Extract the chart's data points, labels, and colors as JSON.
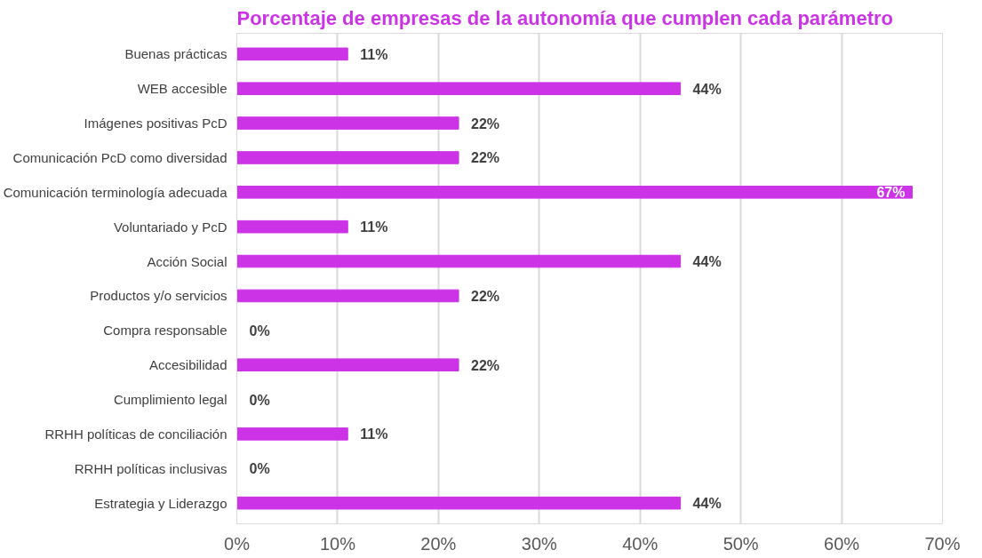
{
  "chart_data": {
    "type": "bar",
    "orientation": "horizontal",
    "title": "Porcentaje de empresas de la autonomía que cumplen cada parámetro",
    "categories": [
      "Buenas prácticas",
      "WEB accesible",
      "Imágenes positivas PcD",
      "Comunicación PcD como diversidad",
      "Comunicación terminología adecuada",
      "Voluntariado y PcD",
      "Acción Social",
      "Productos y/o servicios",
      "Compra responsable",
      "Accesibilidad",
      "Cumplimiento legal",
      "RRHH políticas de conciliación",
      "RRHH políticas inclusivas",
      "Estrategia y Liderazgo"
    ],
    "values": [
      11,
      44,
      22,
      22,
      67,
      11,
      44,
      22,
      0,
      22,
      0,
      11,
      0,
      44
    ],
    "value_labels": [
      "11%",
      "44%",
      "22%",
      "22%",
      "67%",
      "11%",
      "44%",
      "22%",
      "0%",
      "22%",
      "0%",
      "11%",
      "0%",
      "44%"
    ],
    "color": "#cc33e6",
    "xlim": [
      0,
      70
    ],
    "xticks": [
      {
        "value": 0,
        "label": "0%"
      },
      {
        "value": 10,
        "label": "10%"
      },
      {
        "value": 20,
        "label": "20%"
      },
      {
        "value": 30,
        "label": "30%"
      },
      {
        "value": 40,
        "label": "40%"
      },
      {
        "value": 50,
        "label": "50%"
      },
      {
        "value": 60,
        "label": "60%"
      },
      {
        "value": 70,
        "label": "70%"
      }
    ],
    "grid": "x"
  }
}
